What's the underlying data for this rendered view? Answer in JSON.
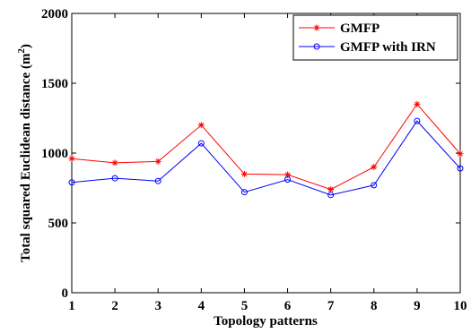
{
  "chart_data": {
    "type": "line",
    "xlabel": "Topology patterns",
    "ylabel_main": "Total squared Euclidean distance (m",
    "ylabel_sup": "2",
    "ylabel_close": ")",
    "x": [
      1,
      2,
      3,
      4,
      5,
      6,
      7,
      8,
      9,
      10
    ],
    "xlim": [
      1,
      10
    ],
    "ylim": [
      0,
      2000
    ],
    "xticks": [
      "1",
      "2",
      "3",
      "4",
      "5",
      "6",
      "7",
      "8",
      "9",
      "10"
    ],
    "yticks": [
      "0",
      "500",
      "1000",
      "1500",
      "2000"
    ],
    "ytick_values": [
      0,
      500,
      1000,
      1500,
      2000
    ],
    "grid": false,
    "legend_position": "top-right",
    "series": [
      {
        "name": "GMFP",
        "color": "#ff0000",
        "marker": "asterisk",
        "values": [
          960,
          930,
          940,
          1200,
          850,
          845,
          740,
          900,
          1350,
          995
        ]
      },
      {
        "name": "GMFP with IRN",
        "color": "#0000ff",
        "marker": "circle",
        "values": [
          790,
          820,
          800,
          1070,
          720,
          810,
          700,
          770,
          1230,
          890
        ]
      }
    ]
  }
}
